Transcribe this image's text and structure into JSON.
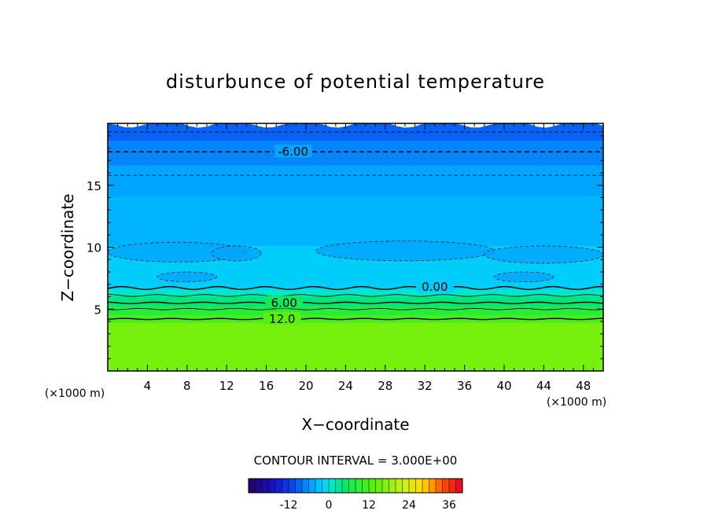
{
  "chart_data": {
    "type": "heatmap",
    "title": "disturbunce of potential temperature",
    "xlabel": "X−coordinate",
    "ylabel": "Z−coordinate",
    "x_unit": "(×1000 m)",
    "z_unit": "(×1000 m)",
    "xlim": [
      0,
      50
    ],
    "ylim": [
      0,
      20
    ],
    "x_ticks": [
      4,
      8,
      12,
      16,
      20,
      24,
      28,
      32,
      36,
      40,
      44,
      48
    ],
    "y_ticks": [
      5,
      10,
      15
    ],
    "grid": false,
    "contour_interval_text": "CONTOUR INTERVAL = 3.000E+00",
    "contour_labels": [
      {
        "text": "-6.00",
        "x": 18.7,
        "z": 17.7
      },
      {
        "text": "0.00",
        "x": 33.0,
        "z": 6.8
      },
      {
        "text": "6.00",
        "x": 17.8,
        "z": 5.5
      },
      {
        "text": "12.0",
        "x": 17.6,
        "z": 4.2
      }
    ],
    "colorbar": {
      "min": -24,
      "max": 40,
      "ticks": [
        "-12",
        "0",
        "12",
        "24",
        "36"
      ],
      "tick_values": [
        -12,
        0,
        12,
        24,
        36
      ]
    },
    "field_levels": [
      {
        "z_top": 4.3,
        "value": 16
      },
      {
        "z_top": 4.9,
        "value": 12
      },
      {
        "z_top": 5.6,
        "value": 8
      },
      {
        "z_top": 6.4,
        "value": 4
      },
      {
        "z_top": 7.0,
        "value": 1
      },
      {
        "z_top": 10.5,
        "value": -2
      },
      {
        "z_top": 14.5,
        "value": -4
      },
      {
        "z_top": 17.0,
        "value": -5
      },
      {
        "z_top": 19.0,
        "value": -7
      },
      {
        "z_top": 20.0,
        "value": -9
      }
    ]
  }
}
